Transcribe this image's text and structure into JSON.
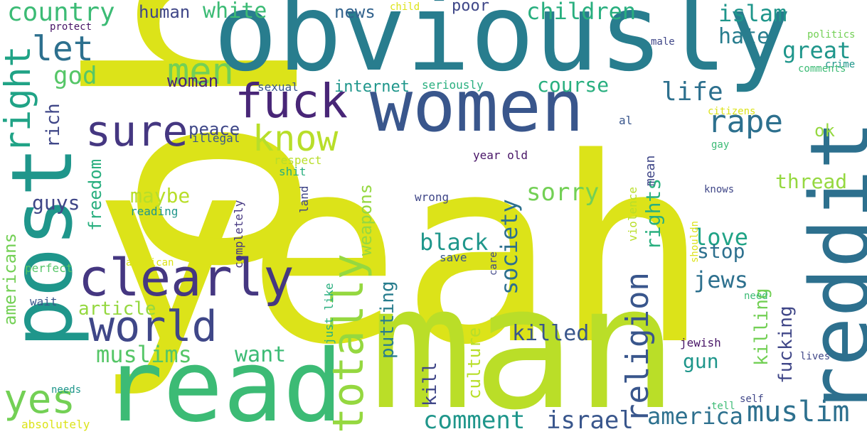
{
  "words": [
    {
      "text": "yeah",
      "color": "#dce319"
    },
    {
      "text": "oh",
      "color": "#dce319"
    },
    {
      "text": "man",
      "color": "#bade28"
    },
    {
      "text": "obviously",
      "color": "#287d8e"
    },
    {
      "text": "women",
      "color": "#39568c"
    },
    {
      "text": "reddit",
      "color": "#2d708e"
    },
    {
      "text": "read",
      "color": "#3cbb75"
    },
    {
      "text": "post",
      "color": "#1f968b"
    },
    {
      "text": "clearly",
      "color": "#453781"
    },
    {
      "text": "world",
      "color": "#3f4788"
    },
    {
      "text": "fuck",
      "color": "#482677"
    },
    {
      "text": "totally",
      "color": "#95d840"
    },
    {
      "text": "know",
      "color": "#b8de29"
    },
    {
      "text": "right",
      "color": "#20a386"
    },
    {
      "text": "sure",
      "color": "#453781"
    },
    {
      "text": "men",
      "color": "#73d055"
    },
    {
      "text": "yes",
      "color": "#73d055"
    },
    {
      "text": "rape",
      "color": "#2d708e"
    },
    {
      "text": "religion",
      "color": "#39568c"
    },
    {
      "text": "muslim",
      "color": "#2d708e"
    },
    {
      "text": "let",
      "color": "#2d708e"
    },
    {
      "text": "country",
      "color": "#3cbb75"
    },
    {
      "text": "children",
      "color": "#29af7f"
    },
    {
      "text": "islam",
      "color": "#1f968b"
    },
    {
      "text": "great",
      "color": "#1f968b"
    },
    {
      "text": "hate",
      "color": "#287d8e"
    },
    {
      "text": "life",
      "color": "#2d708e"
    },
    {
      "text": "god",
      "color": "#55c667"
    },
    {
      "text": "white",
      "color": "#3cbb75"
    },
    {
      "text": "human",
      "color": "#404788"
    },
    {
      "text": "news",
      "color": "#33638d"
    },
    {
      "text": "poor",
      "color": "#3f4788"
    },
    {
      "text": "woman",
      "color": "#482677"
    },
    {
      "text": "internet",
      "color": "#1f968b"
    },
    {
      "text": "course",
      "color": "#29af7f"
    },
    {
      "text": "muslims",
      "color": "#55c667"
    },
    {
      "text": "comment",
      "color": "#1f968b"
    },
    {
      "text": "israel",
      "color": "#39568c"
    },
    {
      "text": "america",
      "color": "#2d708e"
    },
    {
      "text": "society",
      "color": "#2d708e"
    },
    {
      "text": "sorry",
      "color": "#73d055"
    },
    {
      "text": "black",
      "color": "#1f968b"
    },
    {
      "text": "love",
      "color": "#20a386"
    },
    {
      "text": "stop",
      "color": "#2d708e"
    },
    {
      "text": "jews",
      "color": "#2d708e"
    },
    {
      "text": "killed",
      "color": "#39568c"
    },
    {
      "text": "want",
      "color": "#3cbb75"
    },
    {
      "text": "gun",
      "color": "#1f968b"
    },
    {
      "text": "article",
      "color": "#95d840"
    },
    {
      "text": "maybe",
      "color": "#b8de29"
    },
    {
      "text": "guys",
      "color": "#404788"
    },
    {
      "text": "peace",
      "color": "#3f4788"
    },
    {
      "text": "rich",
      "color": "#404788"
    },
    {
      "text": "freedom",
      "color": "#29af7f"
    },
    {
      "text": "americans",
      "color": "#73d055"
    },
    {
      "text": "weapons",
      "color": "#95d840"
    },
    {
      "text": "putting",
      "color": "#287d8e"
    },
    {
      "text": "kill",
      "color": "#404788"
    },
    {
      "text": "culture",
      "color": "#b8de29"
    },
    {
      "text": "rights",
      "color": "#29af7f"
    },
    {
      "text": "thread",
      "color": "#95d840"
    },
    {
      "text": "ok",
      "color": "#95d840"
    },
    {
      "text": "fucking",
      "color": "#404788"
    },
    {
      "text": "killing",
      "color": "#73d055"
    },
    {
      "text": "mean",
      "color": "#404788"
    },
    {
      "text": "sexual",
      "color": "#39568c"
    },
    {
      "text": "seriously",
      "color": "#29af7f"
    },
    {
      "text": "illegal",
      "color": "#39568c"
    },
    {
      "text": "respect",
      "color": "#b8de29"
    },
    {
      "text": "shit",
      "color": "#29af7f"
    },
    {
      "text": "land",
      "color": "#404788"
    },
    {
      "text": "year old",
      "color": "#481567"
    },
    {
      "text": "wrong",
      "color": "#404788"
    },
    {
      "text": "reading",
      "color": "#1f968b"
    },
    {
      "text": "completely",
      "color": "#453781"
    },
    {
      "text": "american",
      "color": "#dce319"
    },
    {
      "text": "save",
      "color": "#39568c"
    },
    {
      "text": "care",
      "color": "#404788"
    },
    {
      "text": "violence",
      "color": "#b8de29"
    },
    {
      "text": "just like",
      "color": "#29af7f"
    },
    {
      "text": "perfect",
      "color": "#55c667"
    },
    {
      "text": "wait",
      "color": "#39568c"
    },
    {
      "text": "needs",
      "color": "#1f968b"
    },
    {
      "text": "absolutely",
      "color": "#dce319"
    },
    {
      "text": "protect",
      "color": "#481567"
    },
    {
      "text": "child",
      "color": "#dce319"
    },
    {
      "text": "politics",
      "color": "#73d055"
    },
    {
      "text": "male",
      "color": "#404788"
    },
    {
      "text": "crime",
      "color": "#1f968b"
    },
    {
      "text": "comments",
      "color": "#3cbb75"
    },
    {
      "text": "citizens",
      "color": "#dce319"
    },
    {
      "text": "al",
      "color": "#39568c"
    },
    {
      "text": "gay",
      "color": "#3cbb75"
    },
    {
      "text": "knows",
      "color": "#404788"
    },
    {
      "text": "shouldn",
      "color": "#dce319"
    },
    {
      "text": "need",
      "color": "#3cbb75"
    },
    {
      "text": "jewish",
      "color": "#481567"
    },
    {
      "text": "lives",
      "color": "#404788"
    },
    {
      "text": "self",
      "color": "#404788"
    },
    {
      "text": "tell",
      "color": "#3cbb75"
    }
  ]
}
